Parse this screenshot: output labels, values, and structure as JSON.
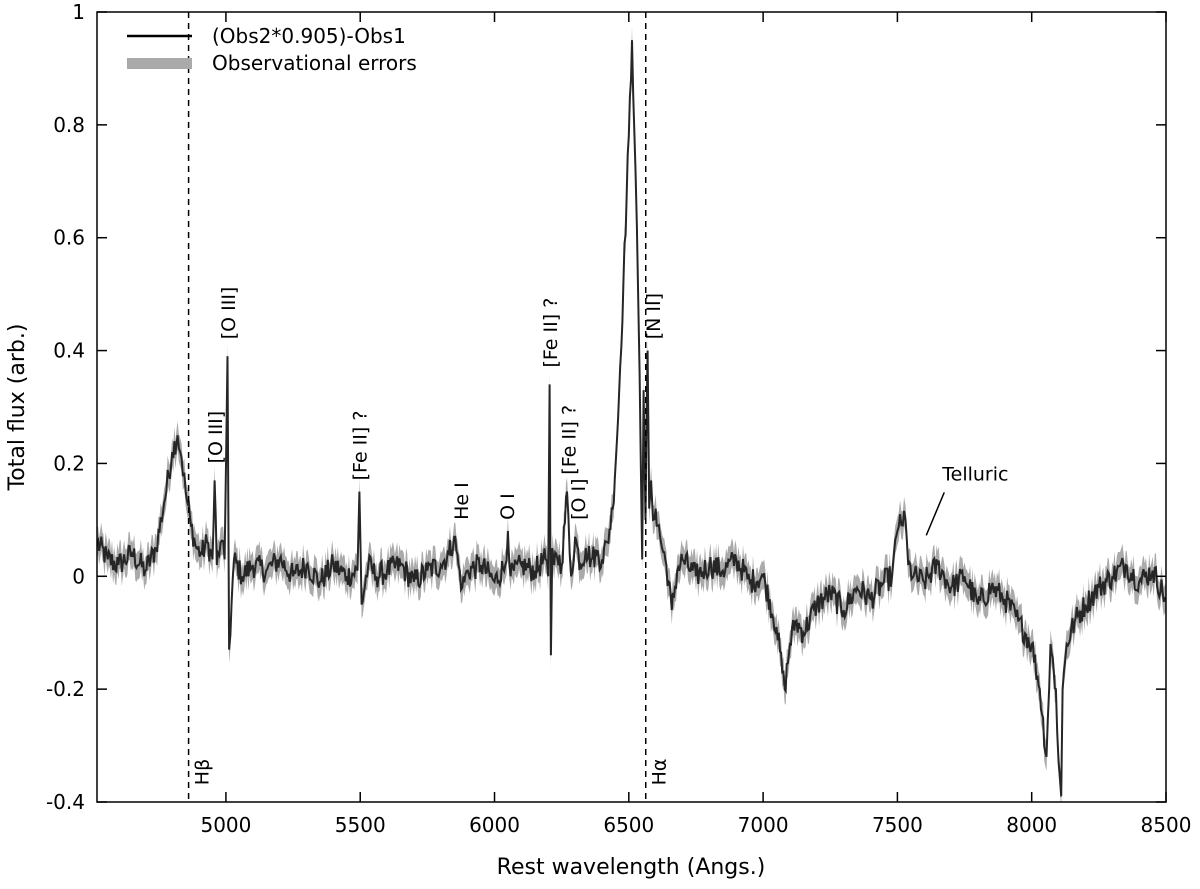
{
  "chart_data": {
    "type": "line",
    "title": "",
    "xlabel": "Rest wavelength (Angs.)",
    "ylabel": "Total flux (arb.)",
    "xlim": [
      4520,
      8500
    ],
    "ylim": [
      -0.4,
      1.0
    ],
    "x_ticks": [
      5000,
      5500,
      6000,
      6500,
      7000,
      7500,
      8000,
      8500
    ],
    "x_tick_labels": [
      "5000",
      "5500",
      "6000",
      "6500",
      "7000",
      "7500",
      "8000",
      "8500"
    ],
    "y_ticks": [
      -0.4,
      -0.2,
      0,
      0.2,
      0.4,
      0.6,
      0.8,
      1.0
    ],
    "y_tick_labels": [
      "-0.4",
      "-0.2",
      "0",
      "0.2",
      "0.4",
      "0.6",
      "0.8",
      "1"
    ],
    "grid": false,
    "legend_position": "top-left",
    "colors": {
      "line": "#262626",
      "error_band": "#aaaaaa",
      "axes": "#000000"
    },
    "series": [
      {
        "name": "(Obs2*0.905)-Obs1",
        "style": "line",
        "x": [
          4520,
          4560,
          4600,
          4650,
          4700,
          4740,
          4770,
          4800,
          4820,
          4835,
          4850,
          4870,
          4890,
          4910,
          4930,
          4950,
          4958,
          4966,
          4980,
          4995,
          5006,
          5012,
          5030,
          5060,
          5100,
          5150,
          5200,
          5250,
          5300,
          5350,
          5400,
          5450,
          5490,
          5497,
          5505,
          5530,
          5560,
          5600,
          5650,
          5700,
          5750,
          5800,
          5830,
          5850,
          5866,
          5880,
          5900,
          5950,
          6000,
          6040,
          6050,
          6060,
          6100,
          6150,
          6190,
          6200,
          6205,
          6210,
          6215,
          6222,
          6230,
          6250,
          6270,
          6285,
          6300,
          6320,
          6340,
          6360,
          6380,
          6400,
          6420,
          6440,
          6460,
          6480,
          6500,
          6512,
          6525,
          6540,
          6550,
          6555,
          6562,
          6570,
          6576,
          6583,
          6590,
          6600,
          6620,
          6640,
          6660,
          6680,
          6700,
          6750,
          6800,
          6850,
          6900,
          6950,
          7000,
          7050,
          7080,
          7100,
          7120,
          7150,
          7200,
          7250,
          7300,
          7350,
          7400,
          7450,
          7480,
          7500,
          7510,
          7520,
          7530,
          7540,
          7560,
          7600,
          7650,
          7700,
          7750,
          7800,
          7850,
          7900,
          7950,
          8000,
          8030,
          8055,
          8070,
          8090,
          8100,
          8110,
          8115,
          8130,
          8160,
          8200,
          8250,
          8300,
          8350,
          8400,
          8450,
          8500
        ],
        "y": [
          0.06,
          0.03,
          0.02,
          0.04,
          0.01,
          0.05,
          0.13,
          0.22,
          0.25,
          0.21,
          0.15,
          0.09,
          0.05,
          0.04,
          0.06,
          0.03,
          0.17,
          0.02,
          0.06,
          0.03,
          0.39,
          -0.13,
          0.03,
          0.0,
          0.02,
          0.01,
          0.03,
          0.0,
          0.02,
          -0.01,
          0.02,
          0.0,
          0.01,
          0.15,
          -0.05,
          0.02,
          0.0,
          0.01,
          0.02,
          -0.01,
          0.01,
          0.02,
          0.04,
          0.07,
          0.02,
          -0.02,
          0.01,
          0.02,
          -0.01,
          0.02,
          0.08,
          0.0,
          0.02,
          0.01,
          0.03,
          0.0,
          0.34,
          -0.14,
          0.05,
          0.02,
          0.04,
          0.02,
          0.15,
          0.0,
          0.07,
          0.02,
          0.05,
          0.03,
          0.04,
          0.03,
          0.06,
          0.12,
          0.28,
          0.52,
          0.78,
          0.95,
          0.72,
          0.36,
          0.03,
          0.33,
          0.1,
          0.4,
          0.12,
          0.17,
          0.1,
          0.12,
          0.06,
          0.02,
          -0.06,
          0.01,
          0.03,
          0.0,
          0.02,
          0.01,
          0.03,
          -0.01,
          0.0,
          -0.09,
          -0.2,
          -0.12,
          -0.08,
          -0.1,
          -0.05,
          -0.03,
          -0.06,
          -0.02,
          -0.04,
          -0.01,
          0.0,
          0.08,
          0.11,
          0.09,
          0.1,
          0.02,
          0.0,
          -0.01,
          0.02,
          -0.02,
          0.0,
          -0.05,
          -0.02,
          -0.04,
          -0.08,
          -0.12,
          -0.2,
          -0.32,
          -0.12,
          -0.2,
          -0.33,
          -0.39,
          -0.2,
          -0.12,
          -0.08,
          -0.05,
          -0.02,
          0.0,
          0.02,
          -0.01,
          0.01,
          -0.04
        ]
      },
      {
        "name": "Observational errors",
        "style": "band",
        "band_width": 0.025
      }
    ],
    "reference_lines": [
      {
        "label": "Hβ",
        "x": 4861
      },
      {
        "label": "Hα",
        "x": 6563
      }
    ],
    "annotations": [
      {
        "text": "[O III]",
        "x": 4959,
        "y": 0.2
      },
      {
        "text": "[O III]",
        "x": 5007,
        "y": 0.42
      },
      {
        "text": "[Fe II] ?",
        "x": 5497,
        "y": 0.17
      },
      {
        "text": "He I",
        "x": 5876,
        "y": 0.1
      },
      {
        "text": "O I",
        "x": 6046,
        "y": 0.1
      },
      {
        "text": "[Fe II] ?",
        "x": 6207,
        "y": 0.37
      },
      {
        "text": "[Fe II] ?",
        "x": 6275,
        "y": 0.18
      },
      {
        "text": "[O I]",
        "x": 6310,
        "y": 0.1
      },
      {
        "text": "[N II]",
        "x": 6590,
        "y": 0.42
      },
      {
        "text": "Telluric",
        "x": 7600,
        "y": 0.17
      }
    ]
  }
}
